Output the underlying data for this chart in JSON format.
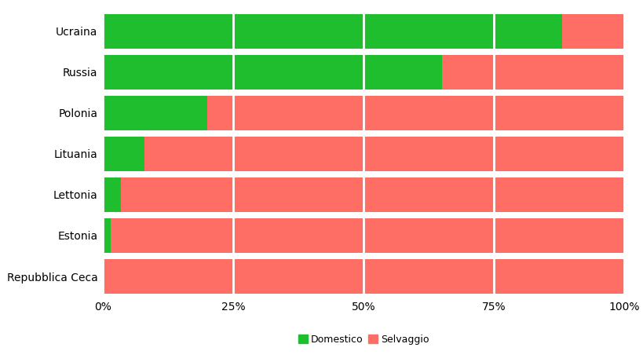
{
  "countries": [
    "Repubblica Ceca",
    "Estonia",
    "Lettonia",
    "Lituania",
    "Polonia",
    "Russia",
    "Ucraina"
  ],
  "domestico": [
    0.0,
    1.5,
    3.5,
    8.0,
    20.0,
    65.0,
    88.0
  ],
  "selvaggio": [
    100.0,
    98.5,
    96.5,
    92.0,
    80.0,
    35.0,
    12.0
  ],
  "color_domestico": "#1fbe2e",
  "color_selvaggio": "#ff6e65",
  "background_color": "#ffffff",
  "legend_domestico": "Domestico",
  "legend_selvaggio": "Selvaggio",
  "xtick_labels": [
    "0%",
    "25%",
    "50%",
    "75%",
    "100%"
  ],
  "xtick_values": [
    0,
    25,
    50,
    75,
    100
  ],
  "bar_height": 0.85
}
